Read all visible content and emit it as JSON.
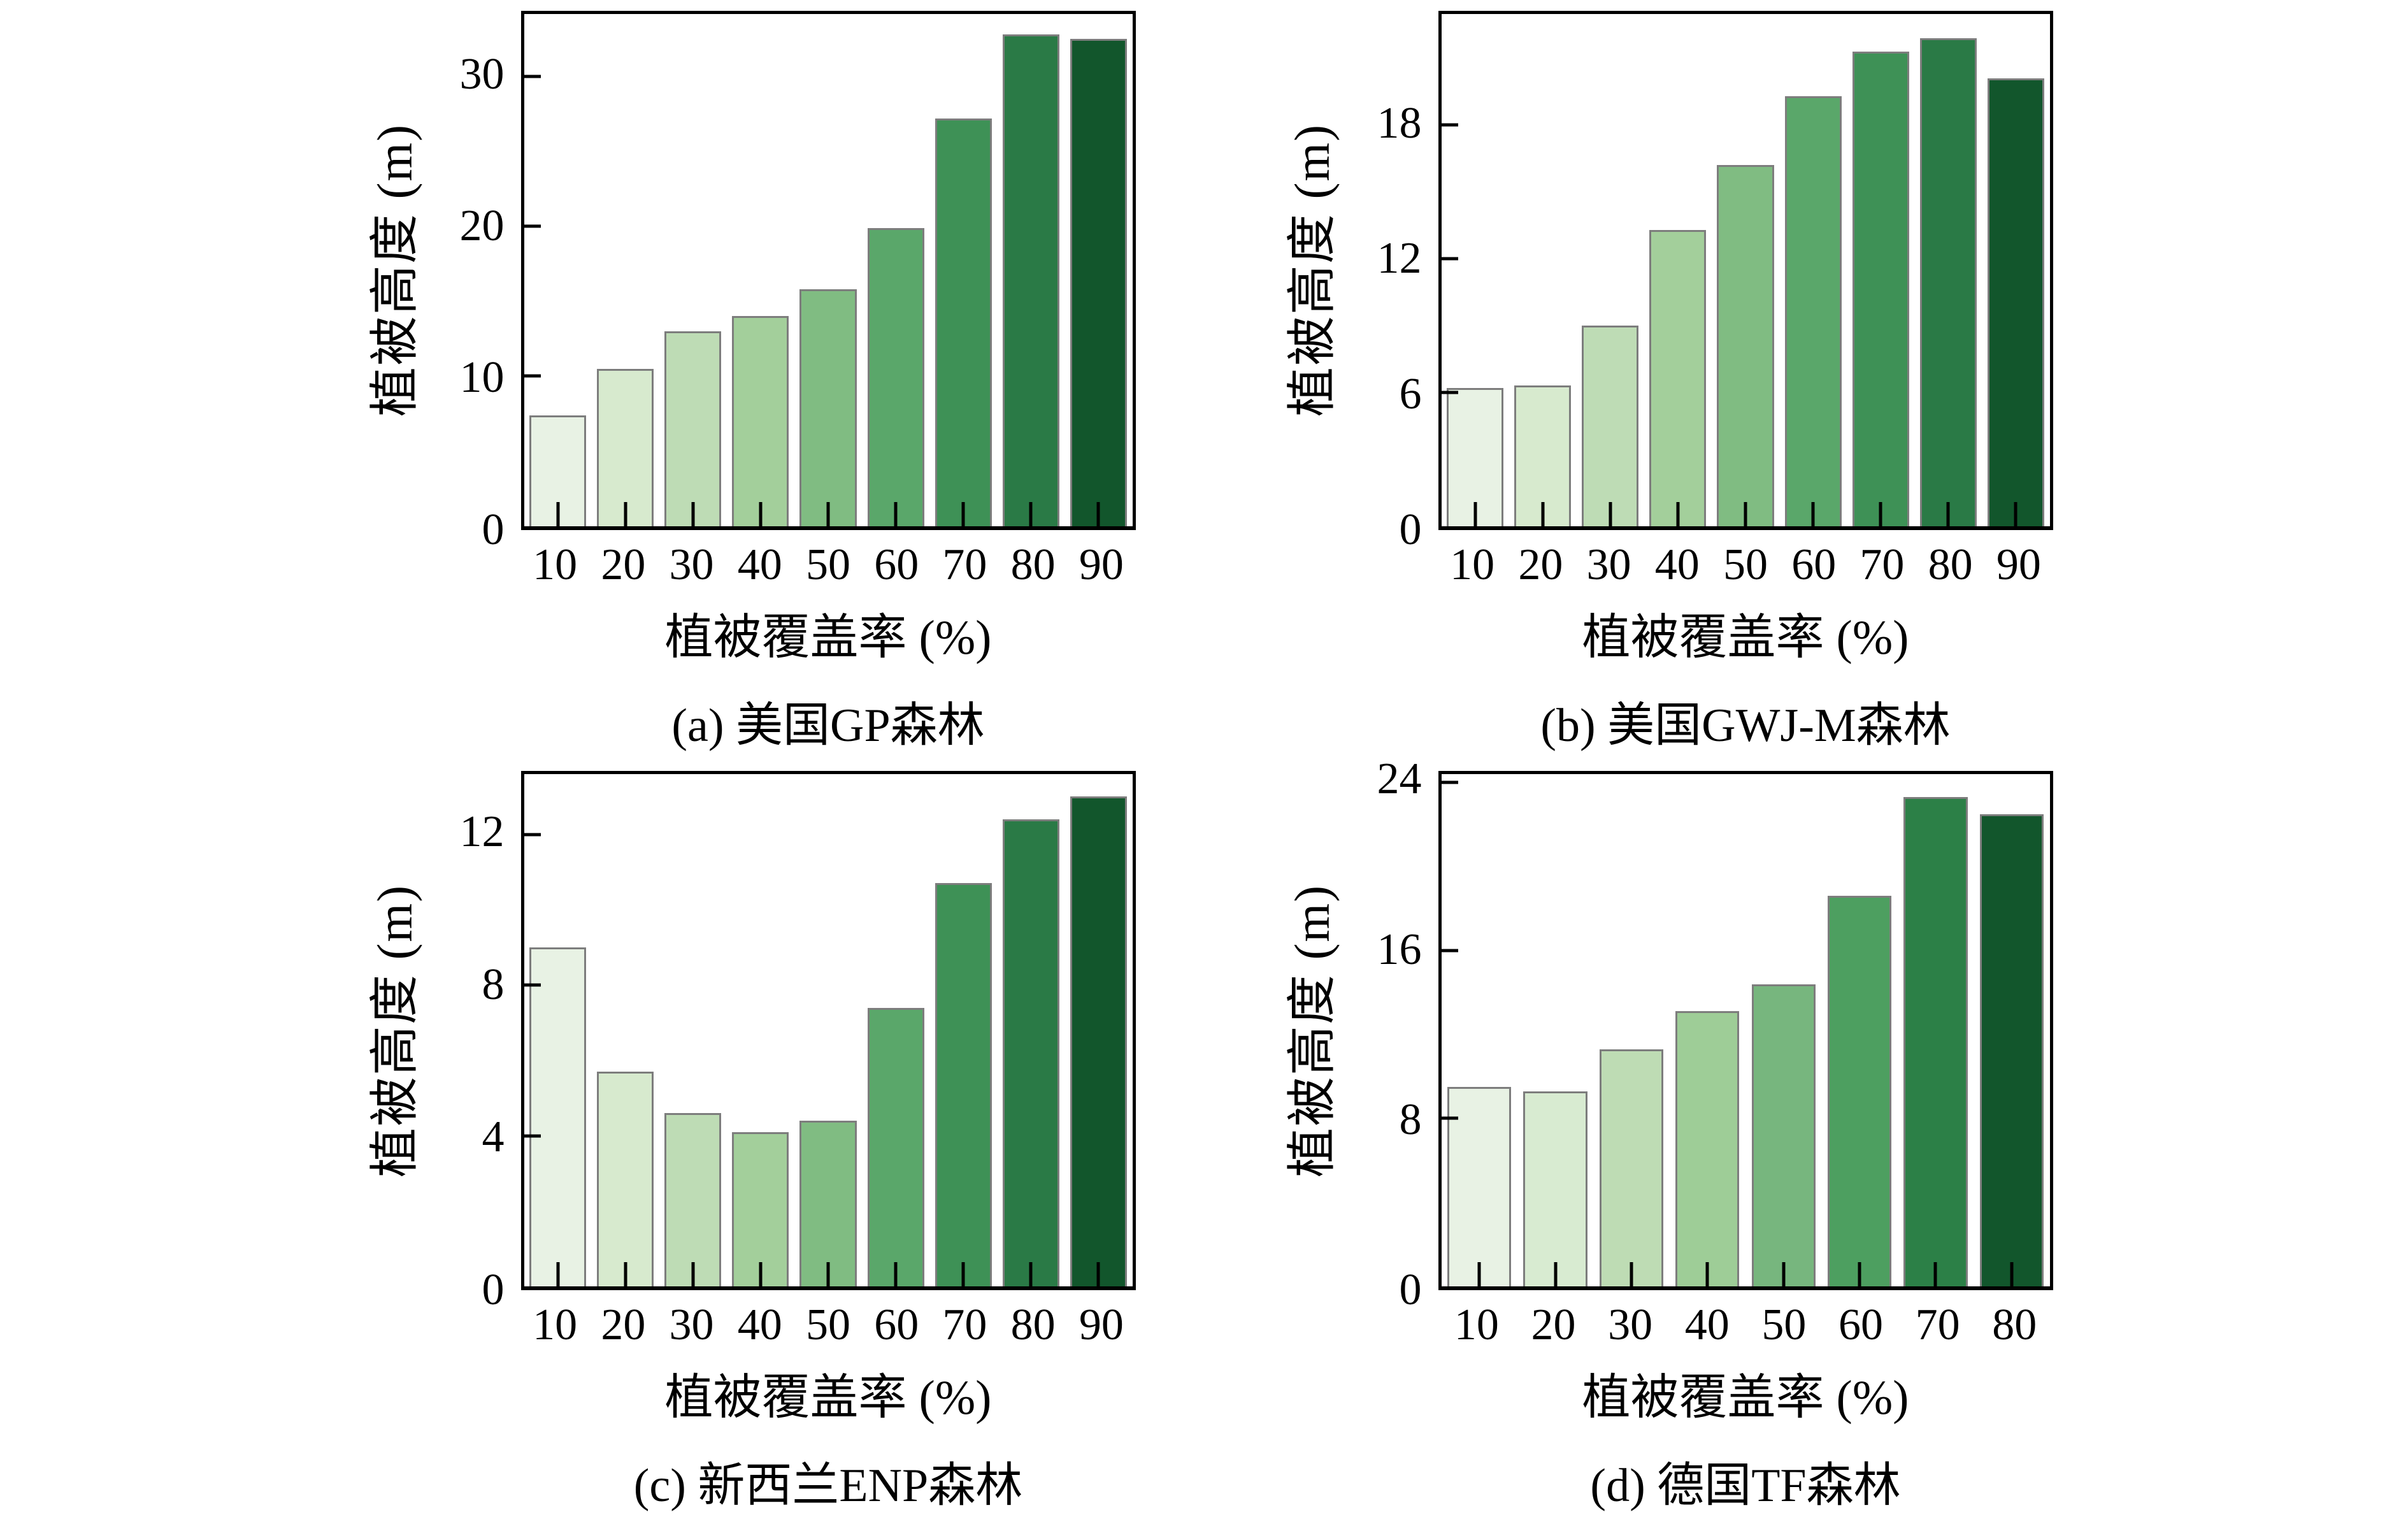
{
  "style": {
    "background": "#ffffff",
    "axis_color": "#000000",
    "bar_edge_color": "#7d7d7d"
  },
  "chart_data": [
    {
      "id": "a",
      "type": "bar",
      "caption": "(a) 美国GP森林",
      "xlabel": "植被覆盖率 (%)",
      "ylabel": "植被高度 (m)",
      "categories": [
        10,
        20,
        30,
        40,
        50,
        60,
        70,
        80,
        90
      ],
      "values": [
        7.4,
        10.5,
        13.0,
        14.0,
        15.8,
        19.9,
        27.2,
        32.8,
        32.5
      ],
      "yticks": [
        0,
        10,
        20,
        30
      ],
      "ylim": [
        0,
        34.2
      ],
      "grid": false,
      "colors": [
        "#e8f2e4",
        "#d7eace",
        "#bedcb5",
        "#a3cf9b",
        "#80bc82",
        "#5aa76a",
        "#3e9156",
        "#2a7a46",
        "#12562c"
      ]
    },
    {
      "id": "b",
      "type": "bar",
      "caption": "(b) 美国GWJ-M森林",
      "xlabel": "植被覆盖率 (%)",
      "ylabel": "植被高度 (m)",
      "categories": [
        10,
        20,
        30,
        40,
        50,
        60,
        70,
        80,
        90
      ],
      "values": [
        6.2,
        6.3,
        9.0,
        13.3,
        16.2,
        19.3,
        21.3,
        21.9,
        20.1
      ],
      "yticks": [
        0,
        6,
        12,
        18
      ],
      "ylim": [
        0,
        23.0
      ],
      "grid": false,
      "colors": [
        "#e8f2e4",
        "#d7eace",
        "#bedcb5",
        "#a3cf9b",
        "#80bc82",
        "#5aa76a",
        "#3e9156",
        "#2a7a46",
        "#12562c"
      ]
    },
    {
      "id": "c",
      "type": "bar",
      "caption": "(c) 新西兰ENP森林",
      "xlabel": "植被覆盖率 (%)",
      "ylabel": "植被高度 (m)",
      "categories": [
        10,
        20,
        30,
        40,
        50,
        60,
        70,
        80,
        90
      ],
      "values": [
        9.0,
        5.7,
        4.6,
        4.1,
        4.4,
        7.4,
        10.7,
        12.4,
        13.0
      ],
      "yticks": [
        0,
        4,
        8,
        12
      ],
      "ylim": [
        0,
        13.6
      ],
      "grid": false,
      "colors": [
        "#e8f2e4",
        "#d7eace",
        "#bedcb5",
        "#a3cf9b",
        "#80bc82",
        "#5aa76a",
        "#3e9156",
        "#2a7a46",
        "#12562c"
      ]
    },
    {
      "id": "d",
      "type": "bar",
      "caption": "(d) 德国TF森林",
      "xlabel": "植被覆盖率 (%)",
      "ylabel": "植被高度 (m)",
      "categories": [
        10,
        20,
        30,
        40,
        50,
        60,
        70,
        80
      ],
      "values": [
        9.5,
        9.3,
        11.3,
        13.1,
        14.4,
        18.6,
        23.3,
        22.5
      ],
      "yticks": [
        0,
        8,
        16,
        24
      ],
      "ylim": [
        0,
        24.4
      ],
      "grid": false,
      "colors": [
        "#e8f2e4",
        "#d8ebd1",
        "#bedcb4",
        "#9ecd97",
        "#77b67e",
        "#4d9f60",
        "#2c8047",
        "#12562c"
      ]
    }
  ]
}
